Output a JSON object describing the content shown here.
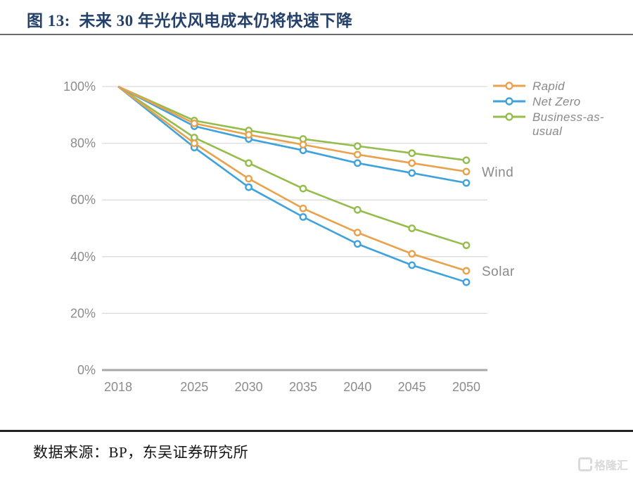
{
  "header": {
    "title": "图 13:  未来 30 年光伏风电成本仍将快速下降"
  },
  "footer": {
    "source": "数据来源：BP，东吴证券研究所",
    "logo_text": "格隆汇"
  },
  "chart_data": {
    "type": "line",
    "title": "",
    "xlabel": "",
    "ylabel": "",
    "x": [
      2018,
      2025,
      2030,
      2035,
      2040,
      2045,
      2050
    ],
    "ylim": [
      0,
      100
    ],
    "yticks": [
      0,
      20,
      40,
      60,
      80,
      100
    ],
    "ytick_suffix": "%",
    "grid": true,
    "legend_position": "top-right",
    "legend": [
      {
        "label": "Rapid",
        "color": "#e9a24b"
      },
      {
        "label": "Net Zero",
        "color": "#3ea2dc"
      },
      {
        "label": "Business-as-usual",
        "color": "#95bd4b"
      }
    ],
    "series": [
      {
        "name": "Wind Rapid",
        "group": "Wind",
        "scenario": "Rapid",
        "color": "#e9a24b",
        "values": [
          100,
          87,
          83,
          79.5,
          76,
          73,
          70
        ]
      },
      {
        "name": "Wind Net Zero",
        "group": "Wind",
        "scenario": "Net Zero",
        "color": "#3ea2dc",
        "values": [
          100,
          86,
          81.5,
          77.5,
          73,
          69.5,
          66
        ]
      },
      {
        "name": "Wind Business-as-usual",
        "group": "Wind",
        "scenario": "Business-as-usual",
        "color": "#95bd4b",
        "values": [
          100,
          88,
          84.5,
          81.5,
          79,
          76.5,
          74
        ]
      },
      {
        "name": "Solar Rapid",
        "group": "Solar",
        "scenario": "Rapid",
        "color": "#e9a24b",
        "values": [
          100,
          80,
          67.5,
          57,
          48.5,
          41,
          35
        ]
      },
      {
        "name": "Solar Net Zero",
        "group": "Solar",
        "scenario": "Net Zero",
        "color": "#3ea2dc",
        "values": [
          100,
          78.5,
          64.5,
          54,
          44.5,
          37,
          31
        ]
      },
      {
        "name": "Solar Business-as-usual",
        "group": "Solar",
        "scenario": "Business-as-usual",
        "color": "#95bd4b",
        "values": [
          100,
          82,
          73,
          64,
          56.5,
          50,
          44
        ]
      }
    ],
    "annotations": [
      {
        "label": "Wind",
        "x": 2050,
        "y": 70
      },
      {
        "label": "Solar",
        "x": 2050,
        "y": 35
      }
    ]
  }
}
